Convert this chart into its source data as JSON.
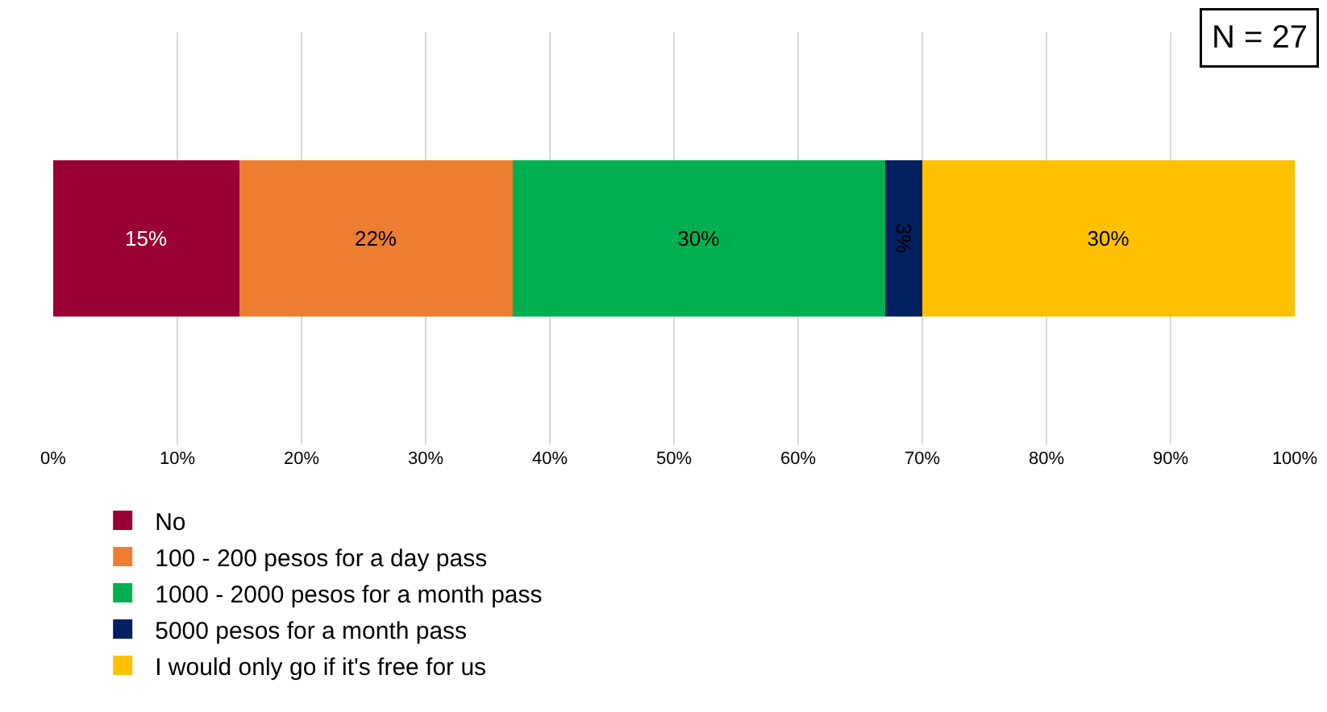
{
  "chart_data": {
    "type": "bar",
    "orientation": "horizontal",
    "stacked": true,
    "categories": [
      null
    ],
    "series": [
      {
        "name": "No",
        "color": "#990033",
        "values": [
          15
        ],
        "value_labels": [
          "15%"
        ]
      },
      {
        "name": "100 - 200 pesos for a day pass",
        "color": "#ed7d31",
        "values": [
          22
        ],
        "value_labels": [
          "22%"
        ]
      },
      {
        "name": "1000 - 2000 pesos for a month pass",
        "color": "#00b050",
        "values": [
          30
        ],
        "value_labels": [
          "30%"
        ]
      },
      {
        "name": "5000 pesos for a month pass",
        "color": "#002060",
        "values": [
          3
        ],
        "value_labels": [
          "3%"
        ]
      },
      {
        "name": "I would only go if it's free for us",
        "color": "#ffc000",
        "values": [
          30
        ],
        "value_labels": [
          "30%"
        ]
      }
    ],
    "xlim": [
      0,
      100
    ],
    "xticks": [
      {
        "value": 0,
        "label": "0%"
      },
      {
        "value": 10,
        "label": "10%"
      },
      {
        "value": 20,
        "label": "20%"
      },
      {
        "value": 30,
        "label": "30%"
      },
      {
        "value": 40,
        "label": "40%"
      },
      {
        "value": 50,
        "label": "50%"
      },
      {
        "value": 60,
        "label": "60%"
      },
      {
        "value": 70,
        "label": "70%"
      },
      {
        "value": 80,
        "label": "80%"
      },
      {
        "value": 90,
        "label": "90%"
      },
      {
        "value": 100,
        "label": "100%"
      }
    ],
    "grid": "x",
    "legend": "bottom",
    "tick_labels": "x",
    "annotations": [
      "N = 27"
    ]
  }
}
